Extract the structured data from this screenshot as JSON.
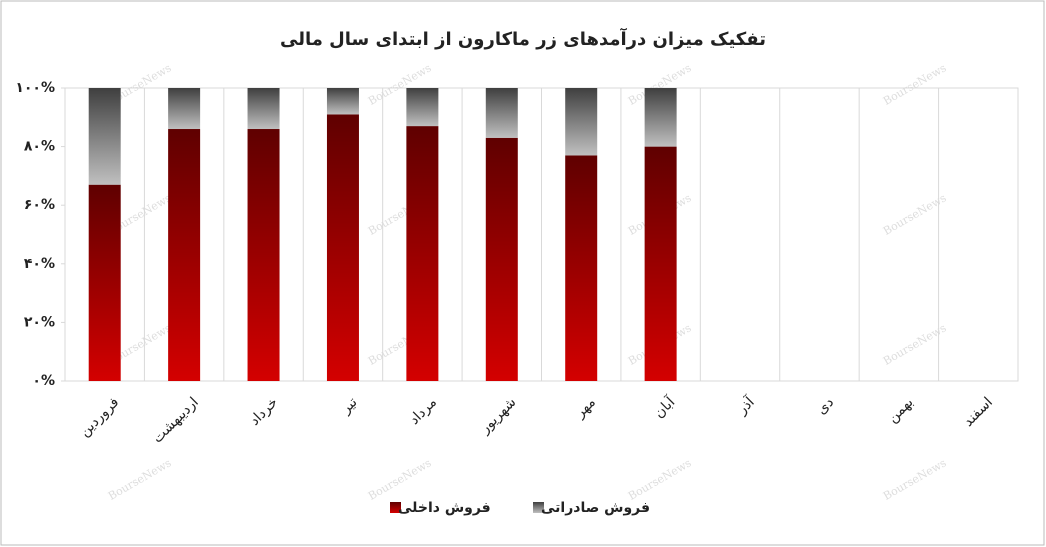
{
  "chart_data": {
    "type": "stacked_bar",
    "title": "تفکیک میزان درآمدهای زر ماکارون از ابتدای سال مالی",
    "watermark": "BourseNews",
    "categories": [
      "فروردین",
      "اردیبهشت",
      "خرداد",
      "تیر",
      "مرداد",
      "شهریور",
      "مهر",
      "آبان",
      "آذر",
      "دی",
      "بهمن",
      "اسفند"
    ],
    "series": [
      {
        "name": "فروش داخلی",
        "color": "#d40000",
        "values": [
          67,
          86,
          86,
          91,
          87,
          83,
          77,
          80,
          null,
          null,
          null,
          null
        ]
      },
      {
        "name": "فروش صادراتی",
        "color": "#8c8c8c",
        "values": [
          33,
          14,
          14,
          9,
          13,
          17,
          23,
          20,
          null,
          null,
          null,
          null
        ]
      }
    ],
    "ylim": [
      0,
      100
    ],
    "yticks": [
      {
        "value": 0,
        "label": "۰%"
      },
      {
        "value": 20,
        "label": "۲۰%"
      },
      {
        "value": 40,
        "label": "۴۰%"
      },
      {
        "value": 60,
        "label": "۶۰%"
      },
      {
        "value": 80,
        "label": "۸۰%"
      },
      {
        "value": 100,
        "label": "۱۰۰%"
      }
    ],
    "legend": "bottom"
  }
}
